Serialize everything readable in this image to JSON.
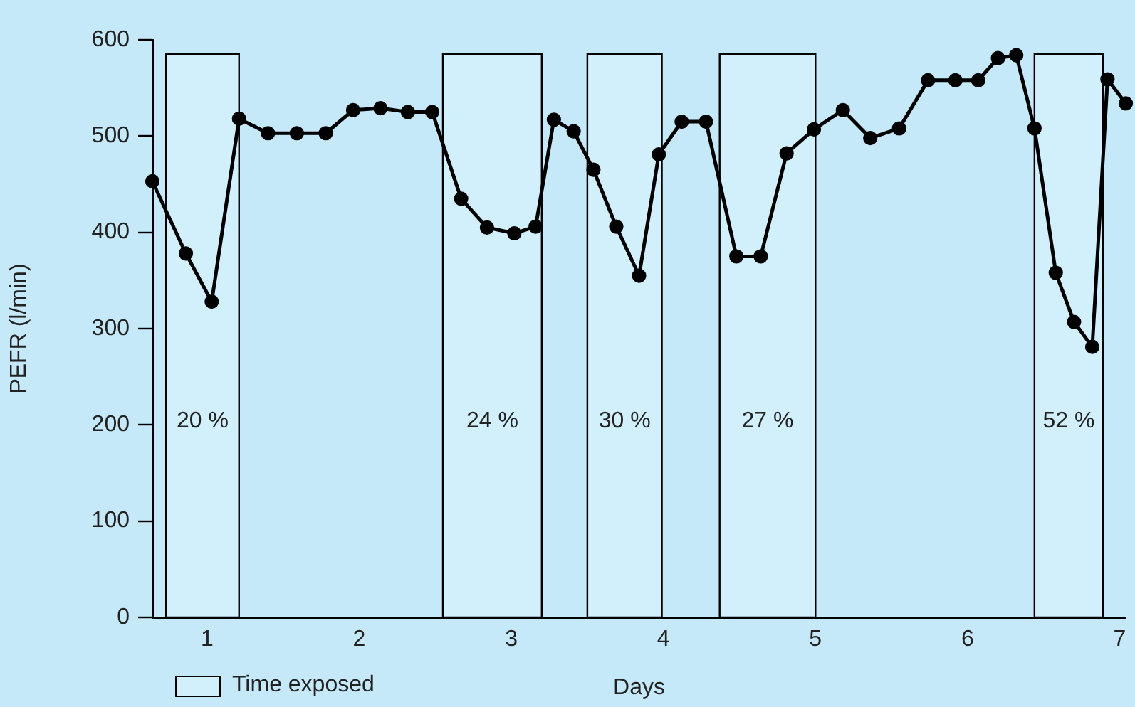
{
  "chart_data": {
    "type": "line",
    "xlabel": "Days",
    "ylabel": "PEFR (l/min)",
    "legend_title": "Time exposed",
    "legend": "bottom left",
    "x": [
      0.64,
      0.86,
      1.03,
      1.21,
      1.4,
      1.59,
      1.78,
      1.96,
      2.14,
      2.32,
      2.48,
      2.67,
      2.84,
      3.02,
      3.16,
      3.28,
      3.41,
      3.54,
      3.69,
      3.84,
      3.97,
      4.12,
      4.28,
      4.48,
      4.64,
      4.81,
      4.99,
      5.18,
      5.36,
      5.55,
      5.74,
      5.92,
      6.07,
      6.2,
      6.32,
      6.44,
      6.58,
      6.7,
      6.82,
      6.92,
      7.04
    ],
    "series": [
      {
        "color": "#000000",
        "values": [
          453,
          378,
          328,
          518,
          503,
          503,
          503,
          527,
          529,
          525,
          525,
          435,
          405,
          399,
          406,
          517,
          505,
          465,
          406,
          355,
          481,
          515,
          515,
          375,
          375,
          482,
          507,
          527,
          498,
          508,
          558,
          558,
          558,
          581,
          584,
          508,
          358,
          307,
          281,
          559,
          534
        ]
      }
    ],
    "xlim": [
      0.64,
      7.04
    ],
    "xticks": [
      1,
      2,
      3,
      4,
      5,
      6,
      7
    ],
    "ylim": [
      0,
      600
    ],
    "yticks": [
      0,
      100,
      200,
      300,
      400,
      500,
      600
    ],
    "grid": false,
    "marker": "circle",
    "line_style": "solid",
    "bands": [
      {
        "axis": "x",
        "from": 0.73,
        "to": 1.21,
        "label": "20 %",
        "color": "#d2effc"
      },
      {
        "axis": "x",
        "from": 2.55,
        "to": 3.2,
        "label": "24 %",
        "color": "#d2effc"
      },
      {
        "axis": "x",
        "from": 3.5,
        "to": 3.99,
        "label": "30 %",
        "color": "#d2effc"
      },
      {
        "axis": "x",
        "from": 4.37,
        "to": 5.0,
        "label": "27 %",
        "color": "#d2effc"
      },
      {
        "axis": "x",
        "from": 6.44,
        "to": 6.89,
        "label": "52 %",
        "color": "#d2effc"
      }
    ]
  }
}
